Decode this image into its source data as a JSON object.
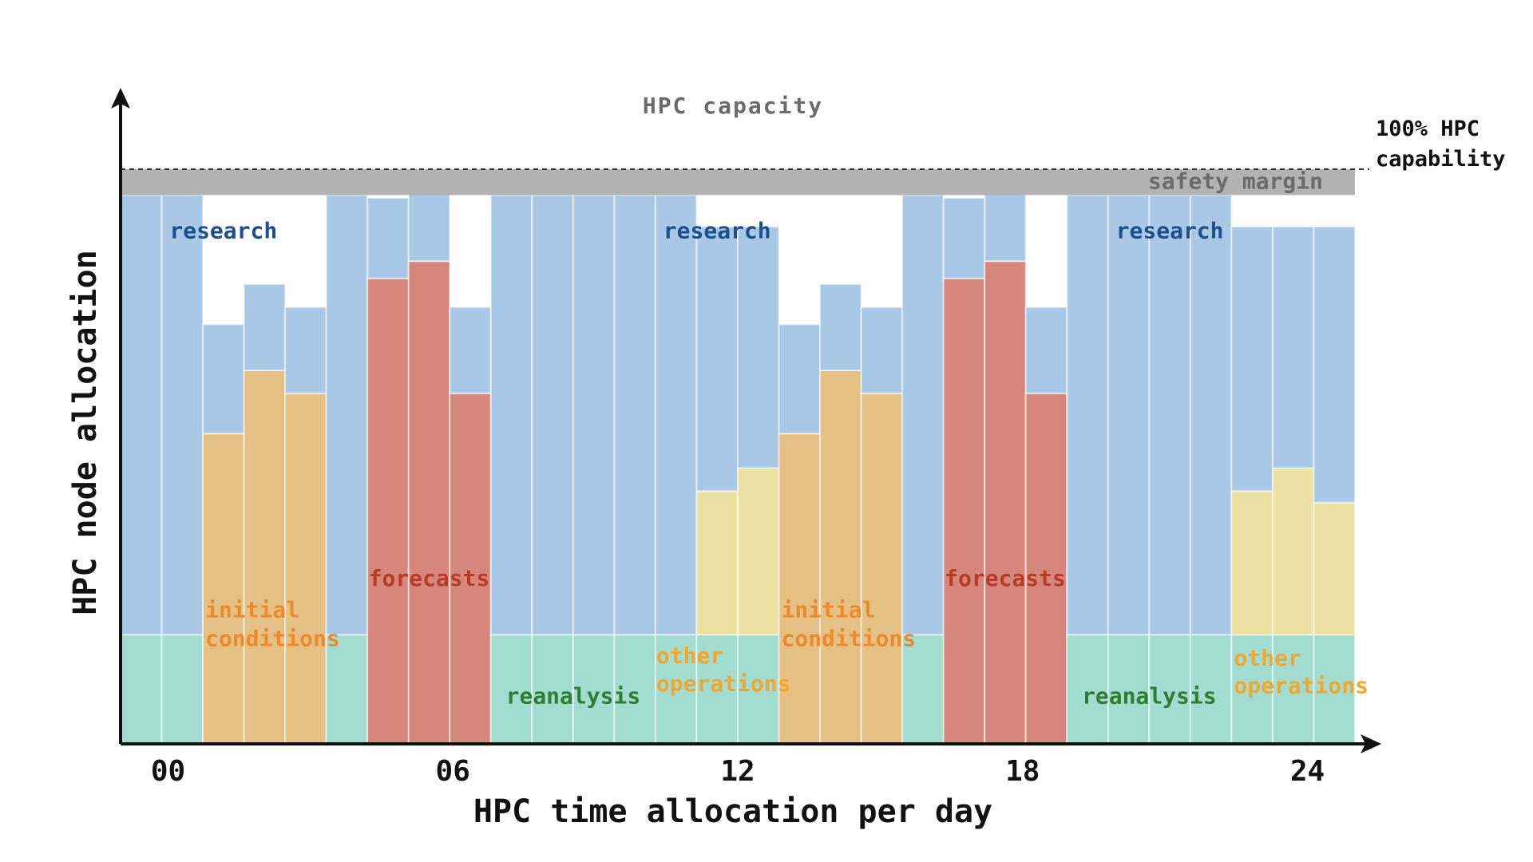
{
  "chart_data": {
    "type": "bar",
    "stacked": true,
    "title": "HPC capacity",
    "xlabel": "HPC time allocation per day",
    "ylabel": "HPC node allocation",
    "x_ticks": [
      "00",
      "06",
      "12",
      "18",
      "24"
    ],
    "x_tick_hours": [
      0,
      6,
      12,
      18,
      24
    ],
    "x_range_hours": [
      -1,
      25
    ],
    "bar_count": 30,
    "ylim": [
      0,
      100
    ],
    "capacity_line": 100,
    "capacity_label": [
      "100% HPC",
      "capability"
    ],
    "safety_margin": {
      "label": "safety margin",
      "from": 95.5,
      "to": 100
    },
    "colors": {
      "research": "#a8c8e6",
      "reanalysis": "#a3dcd1",
      "initial_conditions": "#e5c185",
      "forecasts": "#d6877c",
      "other_operations": "#ebe1a2",
      "safety_margin": "#b3b3b3"
    },
    "series_order": [
      "reanalysis",
      "initial_conditions",
      "forecasts",
      "other_operations",
      "research"
    ],
    "series": [
      {
        "name": "reanalysis",
        "values": [
          19,
          19,
          0,
          0,
          0,
          19,
          0,
          0,
          0,
          19,
          19,
          19,
          19,
          19,
          19,
          19,
          0,
          0,
          0,
          19,
          0,
          0,
          0,
          19,
          19,
          19,
          19,
          19,
          19,
          19
        ]
      },
      {
        "name": "initial_conditions",
        "values": [
          0,
          0,
          54,
          65,
          61,
          0,
          0,
          0,
          0,
          0,
          0,
          0,
          0,
          0,
          0,
          0,
          54,
          65,
          61,
          0,
          0,
          0,
          0,
          0,
          0,
          0,
          0,
          0,
          0,
          0
        ]
      },
      {
        "name": "forecasts",
        "values": [
          0,
          0,
          0,
          0,
          0,
          0,
          81,
          84,
          61,
          0,
          0,
          0,
          0,
          0,
          0,
          0,
          0,
          0,
          0,
          0,
          81,
          84,
          61,
          0,
          0,
          0,
          0,
          0,
          0,
          0
        ]
      },
      {
        "name": "other_operations",
        "values": [
          0,
          0,
          0,
          0,
          0,
          0,
          0,
          0,
          0,
          0,
          0,
          0,
          0,
          0,
          25,
          29,
          0,
          0,
          0,
          0,
          0,
          0,
          0,
          0,
          0,
          0,
          0,
          25,
          29,
          23
        ]
      },
      {
        "name": "research",
        "values": [
          76.5,
          76.5,
          19,
          15,
          15,
          76.5,
          14,
          12,
          15,
          76.5,
          76.5,
          76.5,
          76.5,
          76.5,
          46,
          42,
          19,
          15,
          15,
          76.5,
          14,
          12,
          15,
          76.5,
          76.5,
          76.5,
          76.5,
          46,
          42,
          48
        ]
      }
    ],
    "labels": {
      "research": [
        "research",
        "research",
        "research"
      ],
      "forecasts": [
        "forecasts",
        "forecasts"
      ],
      "initial_conditions": [
        "initial",
        "conditions"
      ],
      "reanalysis": [
        "reanalysis",
        "reanalysis"
      ],
      "other_operations": [
        "other",
        "operations"
      ]
    },
    "label_colors": {
      "research": "#1f4e8c",
      "forecasts": "#b83b26",
      "initial_conditions": "#ee8a2e",
      "reanalysis": "#2e7d32",
      "other_operations": "#f0a830"
    }
  }
}
